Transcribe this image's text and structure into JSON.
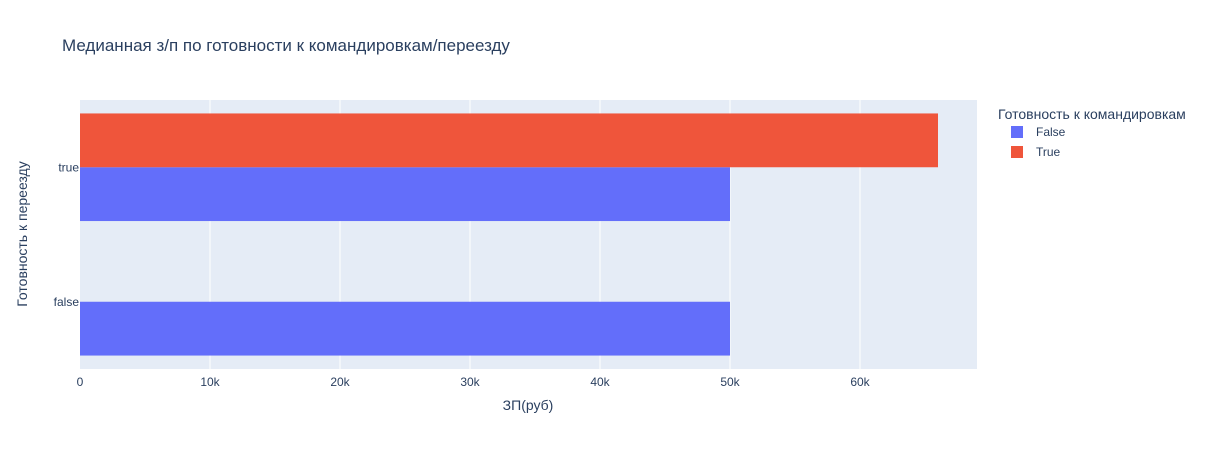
{
  "chart_data": {
    "type": "bar",
    "orientation": "horizontal",
    "barmode": "group",
    "title": "Медианная з/п по готовности к командировкам/переезду",
    "xlabel": "ЗП(руб)",
    "ylabel": "Готовность к переезду",
    "xlim": [
      0,
      69000
    ],
    "x_ticks": [
      0,
      10000,
      20000,
      30000,
      40000,
      50000,
      60000
    ],
    "x_tick_labels": [
      "0",
      "10k",
      "20k",
      "30k",
      "40k",
      "50k",
      "60k"
    ],
    "categories": [
      "false",
      "true"
    ],
    "grid": true,
    "legend": {
      "title": "Готовность к командировкам",
      "placement": "right"
    },
    "series": [
      {
        "name": "False",
        "color": "#636efa",
        "values": [
          50000,
          50000
        ]
      },
      {
        "name": "True",
        "color": "#ef553b",
        "values": [
          null,
          66000
        ]
      }
    ]
  }
}
